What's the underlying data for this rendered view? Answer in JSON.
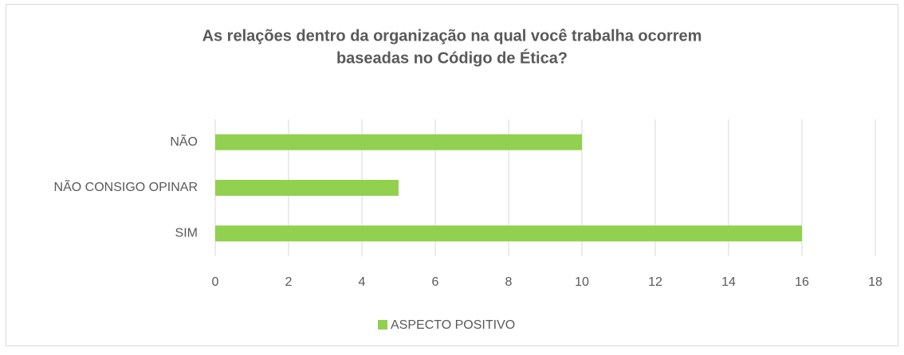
{
  "chart_data": {
    "type": "bar",
    "orientation": "horizontal",
    "title": [
      "As relações dentro da organização na qual você trabalha ocorrem",
      "baseadas no Código de Ética?"
    ],
    "categories": [
      "NÃO",
      "NÃO CONSIGO OPINAR",
      "SIM"
    ],
    "series": [
      {
        "name": "ASPECTO POSITIVO",
        "color": "#92d050",
        "values": [
          10,
          5,
          16
        ]
      }
    ],
    "xlim": [
      0,
      18
    ],
    "xticks": [
      0,
      2,
      4,
      6,
      8,
      10,
      12,
      14,
      16,
      18
    ],
    "grid": true,
    "legend": "bottom"
  }
}
